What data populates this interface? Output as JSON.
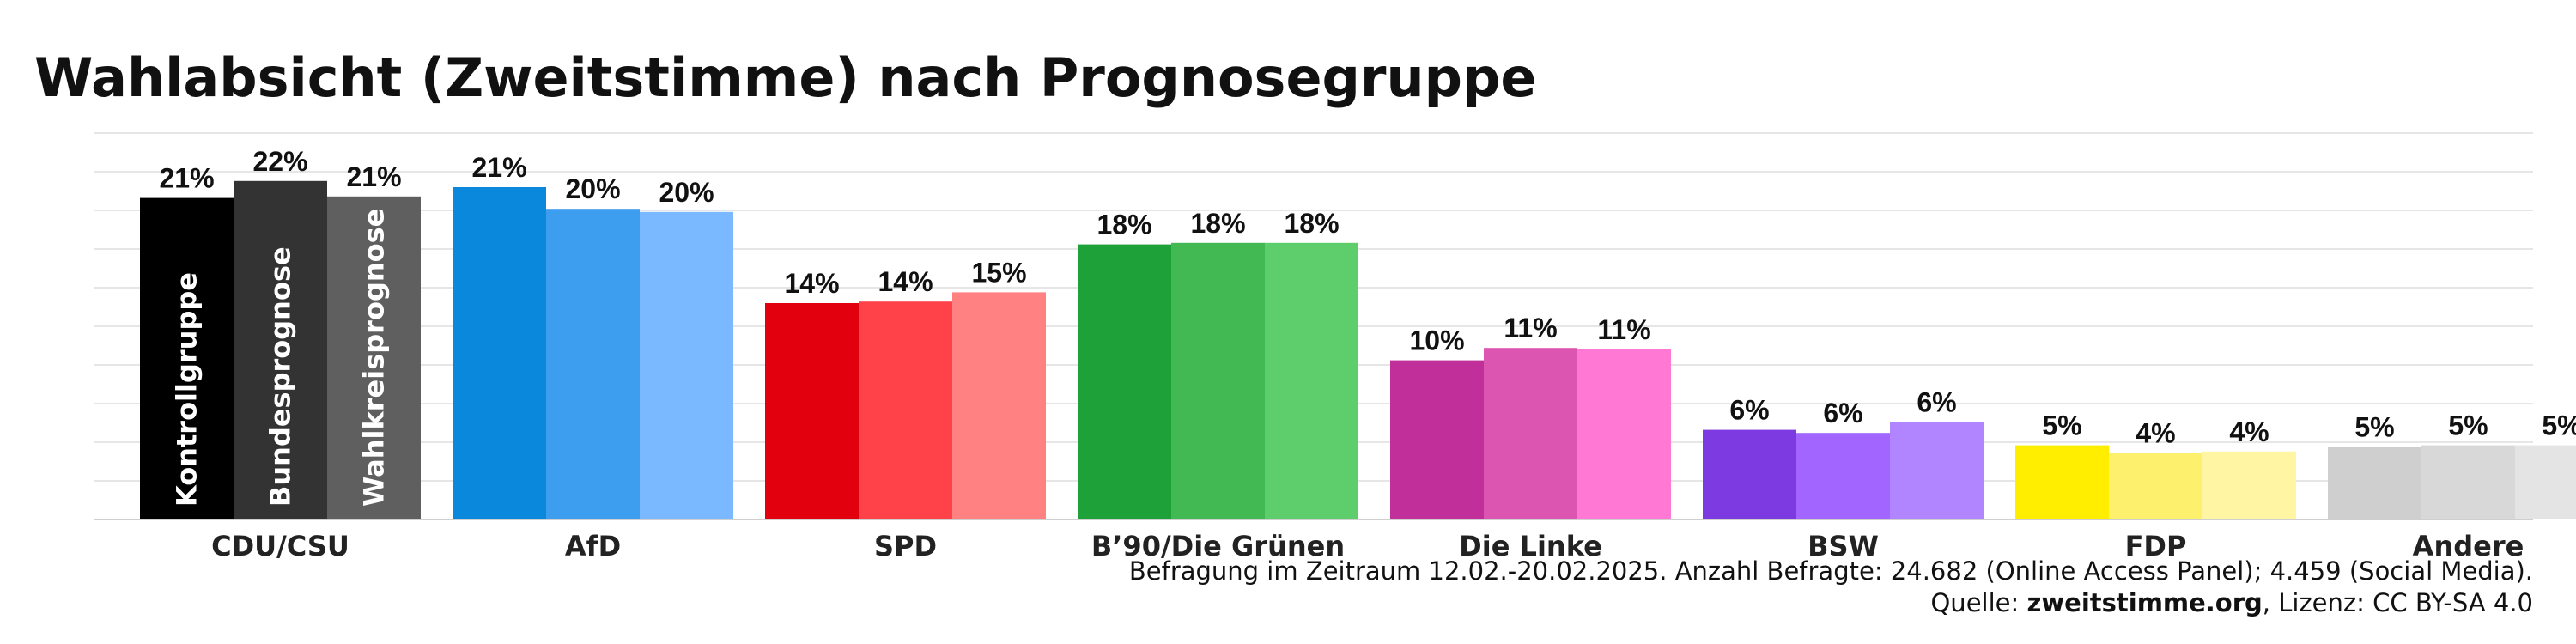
{
  "chart_data": {
    "type": "bar",
    "title": "Wahlabsicht (Zweitstimme) nach Prognosegruppe",
    "categories": [
      "CDU/CSU",
      "AfD",
      "SPD",
      "B’90/Die Grünen",
      "Die Linke",
      "BSW",
      "FDP",
      "Andere"
    ],
    "series": [
      {
        "name": "Kontrollgruppe",
        "values": [
          20.8,
          21.5,
          14.0,
          17.8,
          10.3,
          5.8,
          4.8,
          4.7
        ]
      },
      {
        "name": "Bundesprognose",
        "values": [
          21.9,
          20.1,
          14.1,
          17.9,
          11.1,
          5.6,
          4.3,
          4.8
        ]
      },
      {
        "name": "Wahlkreisprognose",
        "values": [
          20.9,
          19.9,
          14.7,
          17.9,
          11.0,
          6.3,
          4.4,
          4.8
        ]
      }
    ],
    "value_labels": [
      [
        "21%",
        "21%",
        "14%",
        "18%",
        "10%",
        "6%",
        "5%",
        "5%"
      ],
      [
        "22%",
        "20%",
        "14%",
        "18%",
        "11%",
        "6%",
        "4%",
        "5%"
      ],
      [
        "21%",
        "20%",
        "15%",
        "18%",
        "11%",
        "6%",
        "4%",
        "5%"
      ]
    ],
    "colors": [
      [
        "#000000",
        "#333333",
        "#5f5f5f"
      ],
      [
        "#0a89dc",
        "#3d9ef0",
        "#7ab8ff"
      ],
      [
        "#e2000f",
        "#ff4149",
        "#ff8181"
      ],
      [
        "#1ea139",
        "#43b954",
        "#5ecd6c"
      ],
      [
        "#c1309a",
        "#dc55b1",
        "#ff79d4"
      ],
      [
        "#7d3ae0",
        "#a265ff",
        "#b185ff"
      ],
      [
        "#ffee00",
        "#fdf06c",
        "#fff5a3"
      ],
      [
        "#cfcfcf",
        "#d8d8d8",
        "#e4e4e4"
      ]
    ],
    "ylim": [
      0,
      25
    ],
    "grid": true,
    "xlabel": "",
    "ylabel": ""
  },
  "footer": {
    "line1": "Befragung im Zeitraum 12.02.-20.02.2025. Anzahl Befragte: 24.682 (Online Access Panel); 4.459 (Social Media).",
    "source_prefix": "Quelle: ",
    "source_site": "zweitstimme.org",
    "source_suffix": ", Lizenz: CC BY-SA 4.0"
  }
}
